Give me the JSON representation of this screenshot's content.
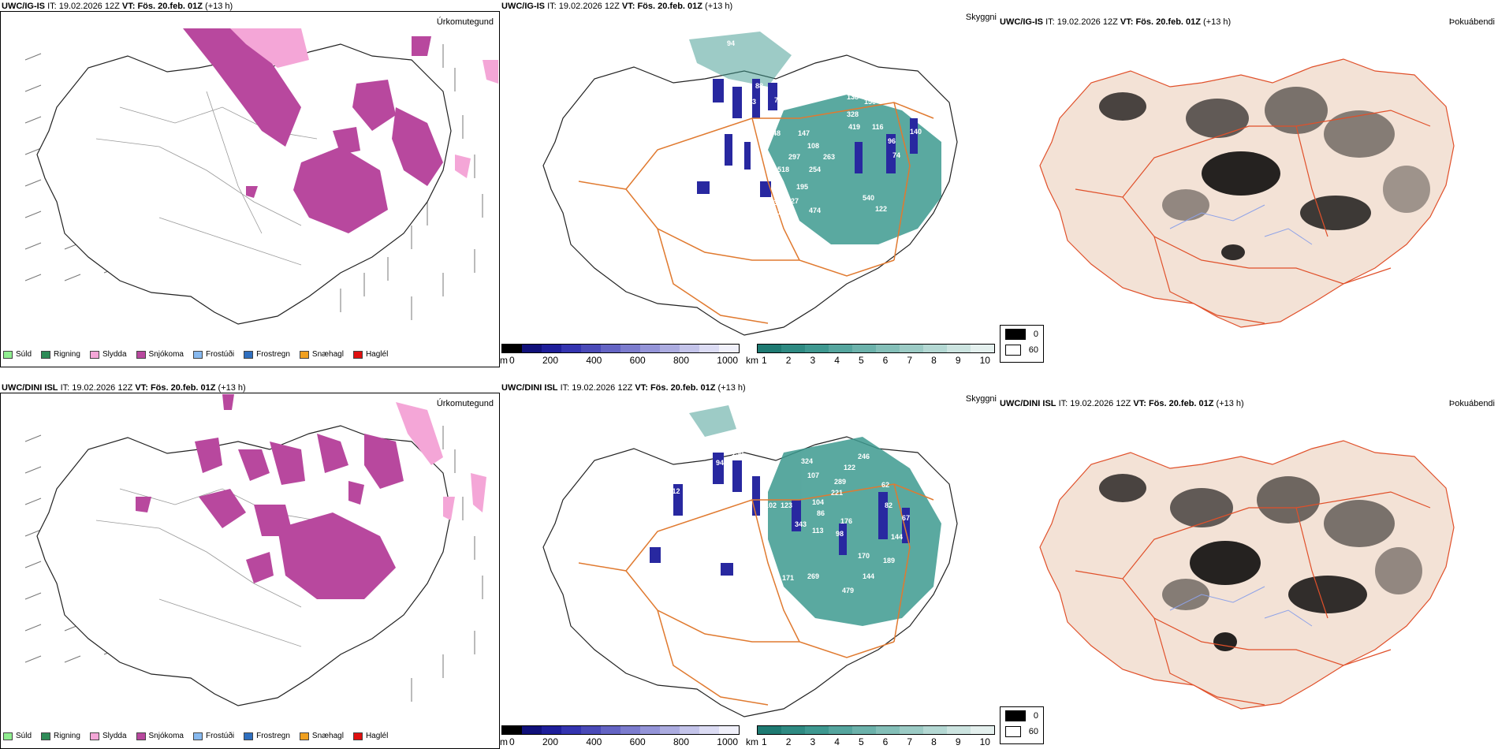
{
  "rows": [
    {
      "model": "UWC/IG-IS",
      "it_label": "IT:",
      "it_value": "19.02.2026 12Z",
      "vt_label": "VT:",
      "vt_value": "Fös. 20.feb. 01Z",
      "lead": "(+13 h)"
    },
    {
      "model": "UWC/DINI ISL",
      "it_label": "IT:",
      "it_value": "19.02.2026 12Z",
      "vt_label": "VT:",
      "vt_value": "Fös. 20.feb. 01Z",
      "lead": "(+13 h)"
    }
  ],
  "panel_titles": {
    "precip": "Úrkomutegund",
    "visibility": "Skyggni",
    "fog": "Þokuábendi"
  },
  "precip_legend": [
    {
      "label": "Súld",
      "color": "#90ee90"
    },
    {
      "label": "Rigning",
      "color": "#2e8b57"
    },
    {
      "label": "Slydda",
      "color": "#f4a6d7"
    },
    {
      "label": "Snjókoma",
      "color": "#b8489e"
    },
    {
      "label": "Frostúði",
      "color": "#87b9ef"
    },
    {
      "label": "Frostregn",
      "color": "#2f6fbf"
    },
    {
      "label": "Snæhagl",
      "color": "#f0a020"
    },
    {
      "label": "Haglél",
      "color": "#e01010"
    }
  ],
  "cloud_base_bar": {
    "unit": "m",
    "ticks": [
      "0",
      "200",
      "400",
      "600",
      "800",
      "1000"
    ],
    "colors": [
      "#000000",
      "#10107a",
      "#1e1e9a",
      "#3434b0",
      "#4a4ab8",
      "#6464c4",
      "#7c7cce",
      "#9494d8",
      "#acace0",
      "#c4c4ea",
      "#dcdcf4",
      "#f0f0fa"
    ]
  },
  "visibility_bar": {
    "unit": "km",
    "ticks": [
      "1",
      "2",
      "3",
      "4",
      "5",
      "6",
      "7",
      "8",
      "9",
      "10"
    ],
    "colors": [
      "#1e7a72",
      "#2e8a82",
      "#3e9890",
      "#55a59e",
      "#6cb2ab",
      "#84bfb8",
      "#9ccbc5",
      "#b4d8d3",
      "#ccE4e0",
      "#e4f0ee"
    ]
  },
  "fog_legend": [
    {
      "label": "0",
      "color": "#000000"
    },
    {
      "label": "60",
      "color": "#ffffff"
    }
  ],
  "cloud_labels_top": [
    "94",
    "172",
    "256",
    "189",
    "118",
    "88",
    "78",
    "183",
    "138",
    "150",
    "328",
    "419",
    "116",
    "96",
    "74",
    "147",
    "108",
    "297",
    "263",
    "518",
    "254",
    "195",
    "109",
    "83",
    "327",
    "198",
    "474",
    "122",
    "540",
    "140",
    "188",
    "48"
  ],
  "cloud_labels_bottom": [
    "393",
    "150",
    "94",
    "324",
    "107",
    "289",
    "221",
    "112",
    "102",
    "123",
    "104",
    "86",
    "176",
    "98",
    "113",
    "343",
    "179",
    "104",
    "171",
    "269",
    "479",
    "144",
    "170",
    "189",
    "144",
    "62",
    "82",
    "122",
    "67",
    "246"
  ],
  "colors": {
    "snow": "#b8489e",
    "sleet": "#f4a6d7",
    "roads": "#e07a30",
    "teal": "#3d9a8f",
    "land_fog": "#f3e2d6",
    "fog_roads": "#e0502a"
  }
}
